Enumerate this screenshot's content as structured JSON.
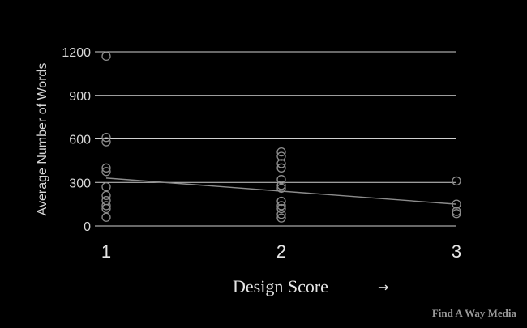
{
  "chart_data": {
    "type": "scatter",
    "title": "",
    "xlabel": "Design Score",
    "xlabel_arrow": "→",
    "ylabel": "Average Number of Words",
    "xlim": [
      1,
      3
    ],
    "ylim": [
      0,
      1200
    ],
    "x_ticks": [
      "1",
      "2",
      "3"
    ],
    "y_ticks": [
      "0",
      "300",
      "600",
      "900",
      "1200"
    ],
    "grid": "horizontal",
    "series": [
      {
        "points": [
          {
            "x": 1,
            "y": 1170
          },
          {
            "x": 1,
            "y": 610
          },
          {
            "x": 1,
            "y": 580
          },
          {
            "x": 1,
            "y": 400
          },
          {
            "x": 1,
            "y": 375
          },
          {
            "x": 1,
            "y": 270
          },
          {
            "x": 1,
            "y": 210
          },
          {
            "x": 1,
            "y": 175
          },
          {
            "x": 1,
            "y": 140
          },
          {
            "x": 1,
            "y": 120
          },
          {
            "x": 1,
            "y": 60
          },
          {
            "x": 2,
            "y": 510
          },
          {
            "x": 2,
            "y": 480
          },
          {
            "x": 2,
            "y": 430
          },
          {
            "x": 2,
            "y": 400
          },
          {
            "x": 2,
            "y": 320
          },
          {
            "x": 2,
            "y": 280
          },
          {
            "x": 2,
            "y": 260
          },
          {
            "x": 2,
            "y": 170
          },
          {
            "x": 2,
            "y": 140
          },
          {
            "x": 2,
            "y": 120
          },
          {
            "x": 2,
            "y": 80
          },
          {
            "x": 2,
            "y": 55
          },
          {
            "x": 3,
            "y": 310
          },
          {
            "x": 3,
            "y": 150
          },
          {
            "x": 3,
            "y": 100
          },
          {
            "x": 3,
            "y": 85
          }
        ]
      }
    ],
    "trendline": {
      "x": [
        1,
        3
      ],
      "y": [
        330,
        150
      ]
    }
  },
  "brand": {
    "text": "Find A Way Media"
  },
  "colors": {
    "background": "#000000",
    "marker": "#8c8c8c",
    "grid": "#d0d0d0"
  }
}
